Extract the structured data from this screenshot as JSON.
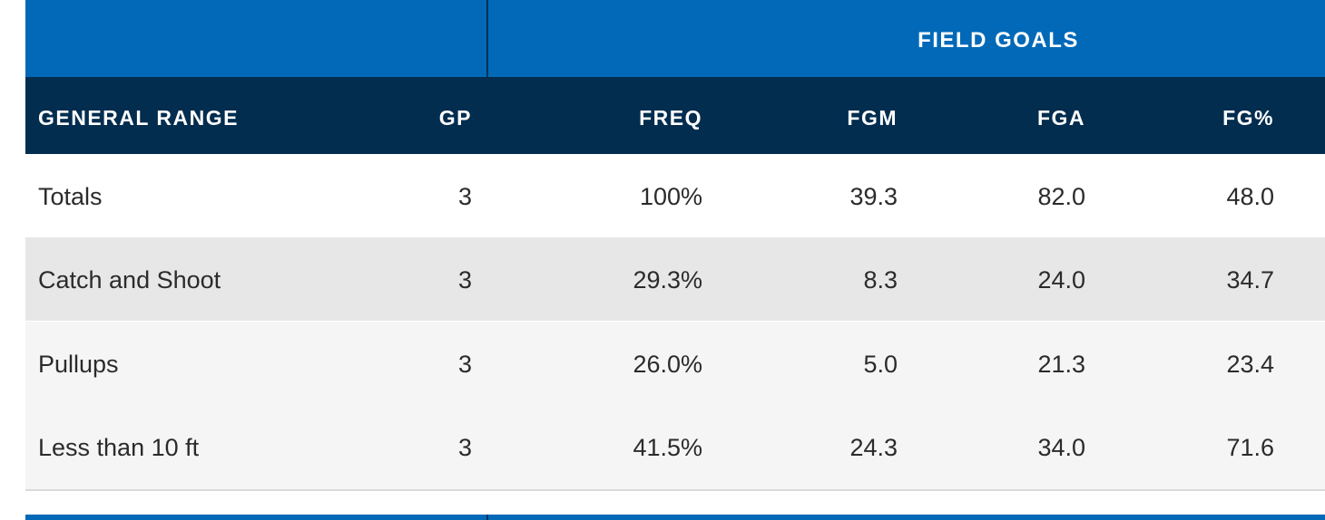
{
  "table": {
    "group_header": "FIELD GOALS",
    "columns": {
      "range": "GENERAL RANGE",
      "gp": "GP",
      "freq": "FREQ",
      "fgm": "FGM",
      "fga": "FGA",
      "fgp": "FG%"
    },
    "rows": [
      {
        "range": "Totals",
        "gp": "3",
        "freq": "100%",
        "fgm": "39.3",
        "fga": "82.0",
        "fgp": "48.0"
      },
      {
        "range": "Catch and Shoot",
        "gp": "3",
        "freq": "29.3%",
        "fgm": "8.3",
        "fga": "24.0",
        "fgp": "34.7"
      },
      {
        "range": "Pullups",
        "gp": "3",
        "freq": "26.0%",
        "fgm": "5.0",
        "fga": "21.3",
        "fgp": "23.4"
      },
      {
        "range": "Less than 10 ft",
        "gp": "3",
        "freq": "41.5%",
        "fgm": "24.3",
        "fga": "34.0",
        "fgp": "71.6"
      }
    ]
  },
  "colors": {
    "group_header_bg": "#0169b7",
    "column_header_bg": "#022d4f",
    "row_alt_bg": "#e7e7e7",
    "row_light_bg": "#f5f5f5"
  }
}
